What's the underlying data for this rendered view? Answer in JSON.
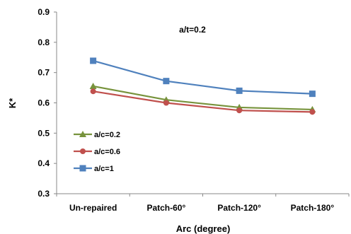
{
  "chart_data": {
    "type": "line",
    "title": "",
    "annotation": "a/t=0.2",
    "xlabel": "Arc (degree)",
    "ylabel": "K*",
    "categories": [
      "Un-repaired",
      "Patch-60°",
      "Patch-120°",
      "Patch-180°"
    ],
    "ylim": [
      0.3,
      0.9
    ],
    "yticks": [
      "0.3",
      "0.4",
      "0.5",
      "0.6",
      "0.7",
      "0.8",
      "0.9"
    ],
    "grid": false,
    "legend_position": "bottom-left",
    "series": [
      {
        "name": "a/c=0.2",
        "marker": "triangle",
        "color": "#77933C",
        "values": [
          0.655,
          0.61,
          0.585,
          0.578
        ]
      },
      {
        "name": "a/c=0.6",
        "marker": "circle",
        "color": "#C0504D",
        "values": [
          0.638,
          0.6,
          0.575,
          0.57
        ]
      },
      {
        "name": "a/c=1",
        "marker": "square",
        "color": "#4F81BD",
        "values": [
          0.739,
          0.672,
          0.64,
          0.63
        ]
      }
    ]
  }
}
